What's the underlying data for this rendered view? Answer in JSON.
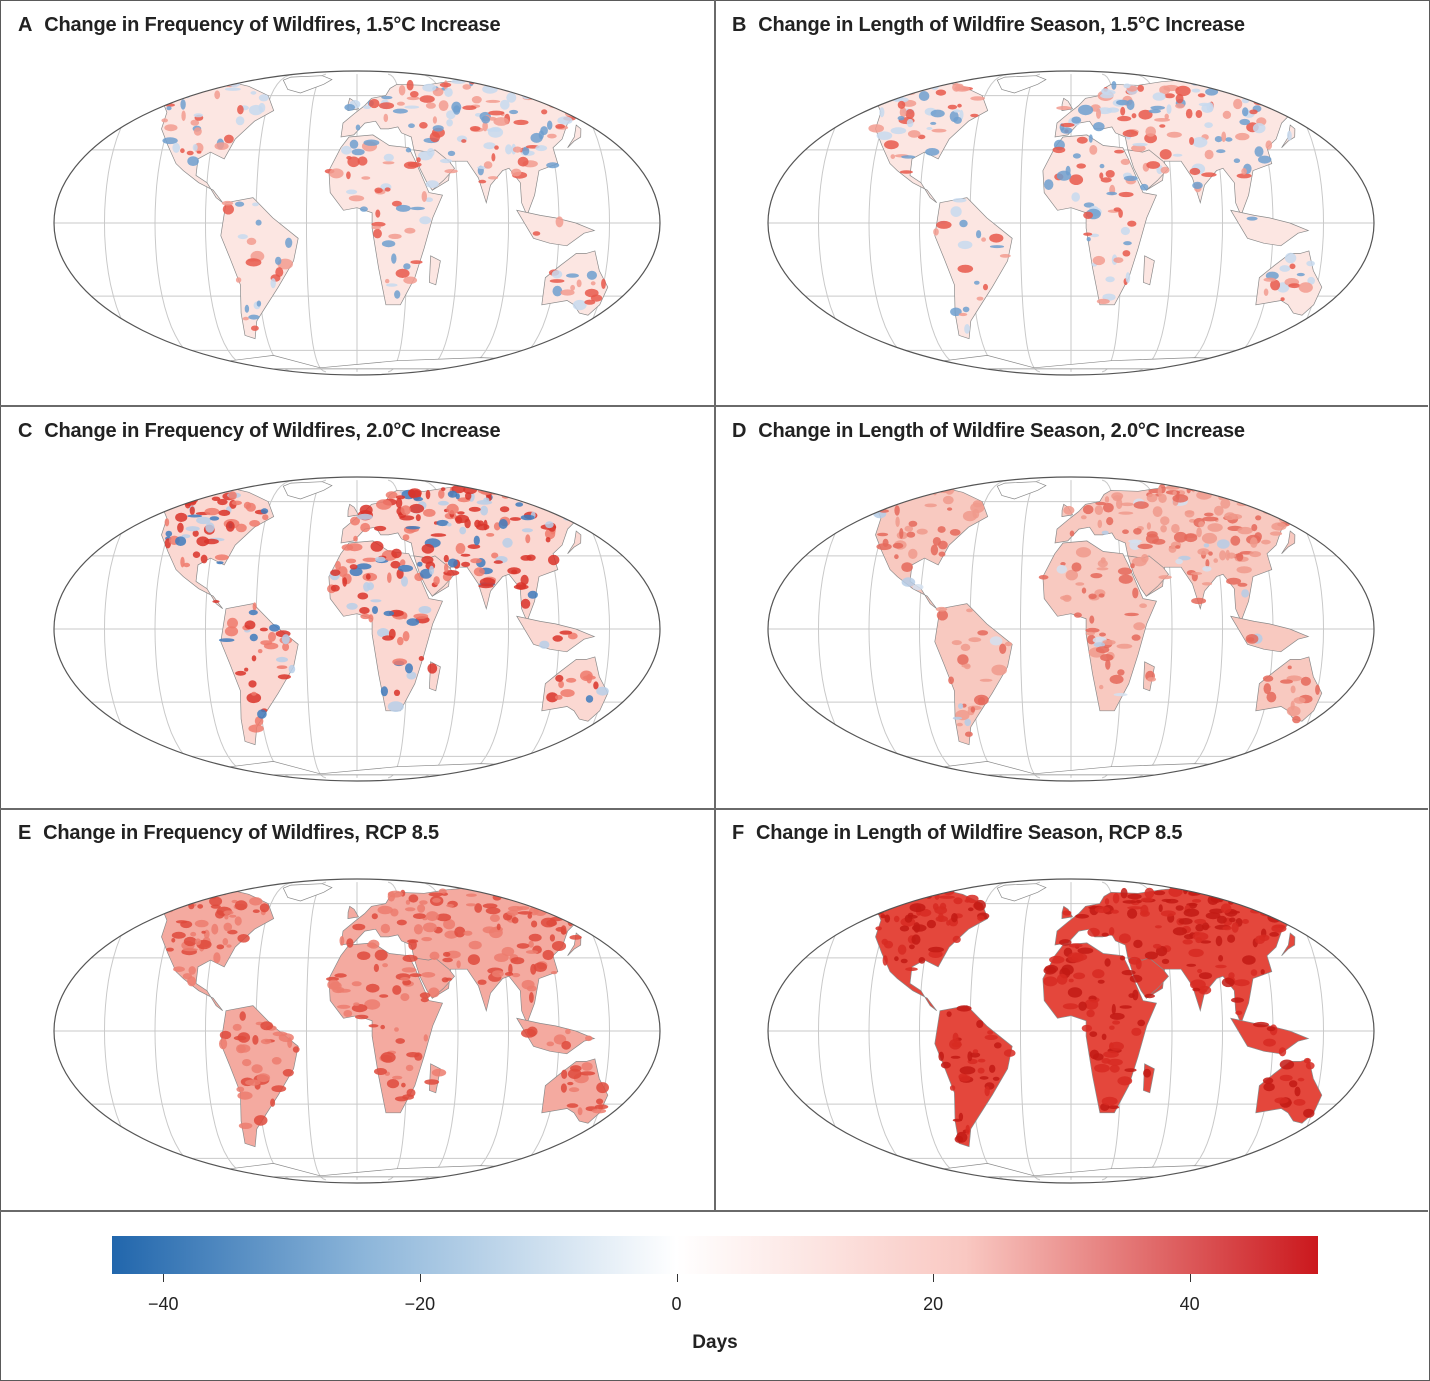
{
  "panels": [
    {
      "letter": "A",
      "title": "Change in Frequency of Wildfires, 1.5°C Increase",
      "pattern": "mixed-low"
    },
    {
      "letter": "B",
      "title": "Change in Length of Wildfire Season, 1.5°C Increase",
      "pattern": "mixed-low"
    },
    {
      "letter": "C",
      "title": "Change in Frequency of Wildfires, 2.0°C Increase",
      "pattern": "mixed-high"
    },
    {
      "letter": "D",
      "title": "Change in Length of Wildfire Season, 2.0°C Increase",
      "pattern": "warm-moderate"
    },
    {
      "letter": "E",
      "title": "Change in Frequency of Wildfires, RCP 8.5",
      "pattern": "warm-strong"
    },
    {
      "letter": "F",
      "title": "Change in Length of Wildfire Season, RCP 8.5",
      "pattern": "warm-extreme"
    }
  ],
  "colorbar": {
    "title": "Days",
    "min": -44,
    "max": 50,
    "ticks": [
      {
        "value": -40,
        "label": "−40"
      },
      {
        "value": -20,
        "label": "−20"
      },
      {
        "value": 0,
        "label": "0"
      },
      {
        "value": 20,
        "label": "20"
      },
      {
        "value": 40,
        "label": "40"
      }
    ],
    "colors": {
      "negative": "#2166ac",
      "zero": "#ffffff",
      "positive": "#cb181d"
    }
  }
}
